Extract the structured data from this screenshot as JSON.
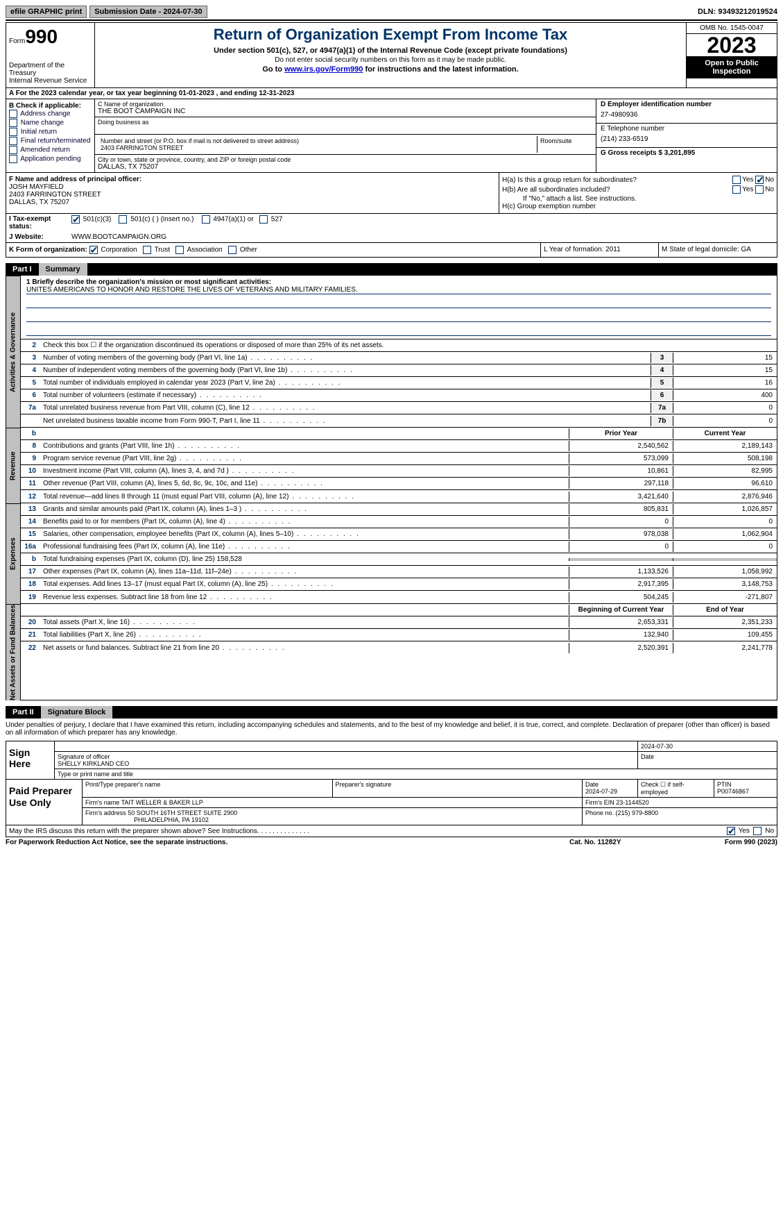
{
  "topbar": {
    "efile_label": "efile GRAPHIC print",
    "submission_label": "Submission Date - 2024-07-30",
    "dln": "DLN: 93493212019524"
  },
  "header": {
    "form_prefix": "Form",
    "form_number": "990",
    "dept": "Department of the Treasury\nInternal Revenue Service",
    "title": "Return of Organization Exempt From Income Tax",
    "sub1": "Under section 501(c), 527, or 4947(a)(1) of the Internal Revenue Code (except private foundations)",
    "sub2": "Do not enter social security numbers on this form as it may be made public.",
    "sub3_prefix": "Go to ",
    "sub3_link": "www.irs.gov/Form990",
    "sub3_suffix": " for instructions and the latest information.",
    "omb": "OMB No. 1545-0047",
    "year": "2023",
    "open": "Open to Public Inspection"
  },
  "line_a": "A For the 2023 calendar year, or tax year beginning 01-01-2023    , and ending 12-31-2023",
  "box_b": {
    "label": "B Check if applicable:",
    "items": [
      "Address change",
      "Name change",
      "Initial return",
      "Final return/terminated",
      "Amended return",
      "Application pending"
    ]
  },
  "box_c": {
    "name_label": "C Name of organization",
    "name": "THE BOOT CAMPAIGN INC",
    "dba_label": "Doing business as",
    "addr_label": "Number and street (or P.O. box if mail is not delivered to street address)",
    "addr": "2403 FARRINGTON STREET",
    "room_label": "Room/suite",
    "city_label": "City or town, state or province, country, and ZIP or foreign postal code",
    "city": "DALLAS, TX  75207"
  },
  "box_d": {
    "ein_label": "D Employer identification number",
    "ein": "27-4980936",
    "phone_label": "E Telephone number",
    "phone": "(214) 233-6519",
    "gross_label": "G Gross receipts $ 3,201,895"
  },
  "box_f": {
    "label": "F  Name and address of principal officer:",
    "name": "JOSH MAYFIELD",
    "addr1": "2403 FARRINGTON STREET",
    "addr2": "DALLAS, TX  75207"
  },
  "box_h": {
    "ha_label": "H(a)  Is this a group return for subordinates?",
    "hb_label": "H(b)  Are all subordinates included?",
    "hb_note": "If \"No,\" attach a list. See instructions.",
    "hc_label": "H(c)  Group exemption number "
  },
  "box_i": {
    "label": "I    Tax-exempt status:",
    "c1": "501(c)(3)",
    "c2": "501(c) (  ) (insert no.)",
    "c3": "4947(a)(1) or",
    "c4": "527"
  },
  "box_j": {
    "label": "J    Website: ",
    "value": "WWW.BOOTCAMPAIGN.ORG"
  },
  "box_k": {
    "label": "K Form of organization:",
    "opts": [
      "Corporation",
      "Trust",
      "Association",
      "Other"
    ]
  },
  "box_l": "L Year of formation: 2011",
  "box_m": "M State of legal domicile: GA",
  "part1": {
    "label": "Part I",
    "title": "Summary",
    "mission_label": "1   Briefly describe the organization's mission or most significant activities:",
    "mission": "UNITES AMERICANS TO HONOR AND RESTORE THE LIVES OF VETERANS AND MILITARY FAMILIES.",
    "line2": "Check this box  ☐  if the organization discontinued its operations or disposed of more than 25% of its net assets.",
    "vtab_gov": "Activities & Governance",
    "vtab_rev": "Revenue",
    "vtab_exp": "Expenses",
    "vtab_net": "Net Assets or Fund Balances",
    "col_prior": "Prior Year",
    "col_current": "Current Year",
    "col_begin": "Beginning of Current Year",
    "col_end": "End of Year",
    "rows_gov": [
      {
        "n": "3",
        "t": "Number of voting members of the governing body (Part VI, line 1a)",
        "box": "3",
        "v": "15"
      },
      {
        "n": "4",
        "t": "Number of independent voting members of the governing body (Part VI, line 1b)",
        "box": "4",
        "v": "15"
      },
      {
        "n": "5",
        "t": "Total number of individuals employed in calendar year 2023 (Part V, line 2a)",
        "box": "5",
        "v": "16"
      },
      {
        "n": "6",
        "t": "Total number of volunteers (estimate if necessary)",
        "box": "6",
        "v": "400"
      },
      {
        "n": "7a",
        "t": "Total unrelated business revenue from Part VIII, column (C), line 12",
        "box": "7a",
        "v": "0"
      },
      {
        "n": "",
        "t": "Net unrelated business taxable income from Form 990-T, Part I, line 11",
        "box": "7b",
        "v": "0"
      }
    ],
    "rows_rev": [
      {
        "n": "8",
        "t": "Contributions and grants (Part VIII, line 1h)",
        "p": "2,540,562",
        "c": "2,189,143"
      },
      {
        "n": "9",
        "t": "Program service revenue (Part VIII, line 2g)",
        "p": "573,099",
        "c": "508,198"
      },
      {
        "n": "10",
        "t": "Investment income (Part VIII, column (A), lines 3, 4, and 7d )",
        "p": "10,861",
        "c": "82,995"
      },
      {
        "n": "11",
        "t": "Other revenue (Part VIII, column (A), lines 5, 6d, 8c, 9c, 10c, and 11e)",
        "p": "297,118",
        "c": "96,610"
      },
      {
        "n": "12",
        "t": "Total revenue—add lines 8 through 11 (must equal Part VIII, column (A), line 12)",
        "p": "3,421,640",
        "c": "2,876,946"
      }
    ],
    "rows_exp": [
      {
        "n": "13",
        "t": "Grants and similar amounts paid (Part IX, column (A), lines 1–3 )",
        "p": "805,831",
        "c": "1,026,857"
      },
      {
        "n": "14",
        "t": "Benefits paid to or for members (Part IX, column (A), line 4)",
        "p": "0",
        "c": "0"
      },
      {
        "n": "15",
        "t": "Salaries, other compensation, employee benefits (Part IX, column (A), lines 5–10)",
        "p": "978,038",
        "c": "1,062,904"
      },
      {
        "n": "16a",
        "t": "Professional fundraising fees (Part IX, column (A), line 11e)",
        "p": "0",
        "c": "0"
      },
      {
        "n": "b",
        "t": "Total fundraising expenses (Part IX, column (D), line 25) 158,528",
        "grey": true
      },
      {
        "n": "17",
        "t": "Other expenses (Part IX, column (A), lines 11a–11d, 11f–24e)",
        "p": "1,133,526",
        "c": "1,058,992"
      },
      {
        "n": "18",
        "t": "Total expenses. Add lines 13–17 (must equal Part IX, column (A), line 25)",
        "p": "2,917,395",
        "c": "3,148,753"
      },
      {
        "n": "19",
        "t": "Revenue less expenses. Subtract line 18 from line 12",
        "p": "504,245",
        "c": "-271,807"
      }
    ],
    "rows_net": [
      {
        "n": "20",
        "t": "Total assets (Part X, line 16)",
        "p": "2,653,331",
        "c": "2,351,233"
      },
      {
        "n": "21",
        "t": "Total liabilities (Part X, line 26)",
        "p": "132,940",
        "c": "109,455"
      },
      {
        "n": "22",
        "t": "Net assets or fund balances. Subtract line 21 from line 20",
        "p": "2,520,391",
        "c": "2,241,778"
      }
    ]
  },
  "part2": {
    "label": "Part II",
    "title": "Signature Block",
    "decl": "Under penalties of perjury, I declare that I have examined this return, including accompanying schedules and statements, and to the best of my knowledge and belief, it is true, correct, and complete. Declaration of preparer (other than officer) is based on all information of which preparer has any knowledge.",
    "sign_here": "Sign Here",
    "sig_officer_label": "Signature of officer",
    "sig_name": "SHELLY KIRKLAND  CEO",
    "sig_title_label": "Type or print name and title",
    "sig_date": "2024-07-30",
    "date_label": "Date",
    "paid_prep": "Paid Preparer Use Only",
    "prep_name_label": "Print/Type preparer's name",
    "prep_sig_label": "Preparer's signature",
    "prep_date": "2024-07-29",
    "self_emp": "Check ☐ if self-employed",
    "ptin_label": "PTIN",
    "ptin": "P00746867",
    "firm_name_label": "Firm's name    ",
    "firm_name": "TAIT WELLER & BAKER LLP",
    "firm_ein_label": "Firm's EIN  ",
    "firm_ein": "23-1144520",
    "firm_addr_label": "Firm's address ",
    "firm_addr1": "50 SOUTH 16TH STREET SUITE 2900",
    "firm_addr2": "PHILADELPHIA, PA  19102",
    "firm_phone_label": "Phone no. ",
    "firm_phone": "(215) 979-8800",
    "discuss": "May the IRS discuss this return with the preparer shown above? See Instructions.   .    .   .   .   .   .   .   .   .   .   .   .   ."
  },
  "footer": {
    "pw": "For Paperwork Reduction Act Notice, see the separate instructions.",
    "cat": "Cat. No. 11282Y",
    "form": "Form 990 (2023)"
  },
  "colors": {
    "accent": "#003366",
    "link": "#0000cc",
    "grey": "#c0c0c0"
  }
}
